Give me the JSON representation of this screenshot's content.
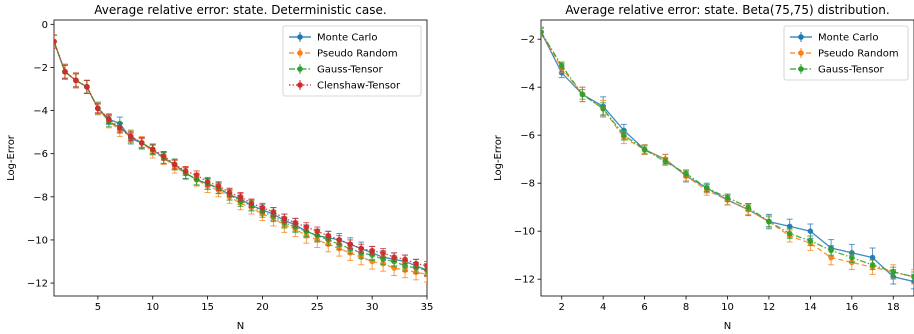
{
  "chart_data": [
    {
      "type": "line",
      "title": "Average relative error: state. Deterministic case.",
      "xlabel": "N",
      "ylabel": "Log-Error",
      "xlim": [
        1,
        35
      ],
      "ylim": [
        -12.6,
        0.2
      ],
      "xticks": [
        5,
        10,
        15,
        20,
        25,
        30,
        35
      ],
      "yticks": [
        0,
        -2,
        -4,
        -6,
        -8,
        -10,
        -12
      ],
      "legend": "top-right",
      "x": [
        1,
        2,
        3,
        4,
        5,
        6,
        7,
        8,
        9,
        10,
        11,
        12,
        13,
        14,
        15,
        16,
        17,
        18,
        19,
        20,
        21,
        22,
        23,
        24,
        25,
        26,
        27,
        28,
        29,
        30,
        31,
        32,
        33,
        34,
        35
      ],
      "series": [
        {
          "name": "Monte Carlo",
          "color": "#1f77b4",
          "dash": "solid",
          "values": [
            -0.8,
            -2.2,
            -2.6,
            -2.9,
            -3.9,
            -4.4,
            -4.6,
            -5.3,
            -5.5,
            -5.8,
            -6.2,
            -6.5,
            -6.9,
            -7.2,
            -7.4,
            -7.6,
            -7.9,
            -8.1,
            -8.4,
            -8.6,
            -8.8,
            -9.1,
            -9.3,
            -9.6,
            -9.8,
            -9.9,
            -10.0,
            -10.2,
            -10.4,
            -10.6,
            -10.8,
            -10.9,
            -11.0,
            -11.2,
            -11.4
          ],
          "errors": [
            0.3,
            0.35,
            0.35,
            0.3,
            0.25,
            0.25,
            0.3,
            0.25,
            0.25,
            0.25,
            0.25,
            0.25,
            0.25,
            0.25,
            0.25,
            0.25,
            0.25,
            0.25,
            0.25,
            0.25,
            0.3,
            0.3,
            0.3,
            0.3,
            0.3,
            0.3,
            0.3,
            0.3,
            0.3,
            0.3,
            0.3,
            0.3,
            0.3,
            0.3,
            0.3
          ]
        },
        {
          "name": "Pseudo Random",
          "color": "#ff7f0e",
          "dash": "dashed",
          "values": [
            -0.8,
            -2.2,
            -2.6,
            -2.9,
            -3.9,
            -4.5,
            -4.9,
            -5.2,
            -5.5,
            -5.9,
            -6.2,
            -6.6,
            -6.9,
            -7.2,
            -7.5,
            -7.7,
            -8.0,
            -8.3,
            -8.5,
            -8.8,
            -9.0,
            -9.3,
            -9.5,
            -9.8,
            -10.0,
            -10.2,
            -10.4,
            -10.6,
            -10.8,
            -11.0,
            -11.1,
            -11.3,
            -11.4,
            -11.5,
            -11.6
          ],
          "errors": [
            0.3,
            0.35,
            0.35,
            0.3,
            0.3,
            0.3,
            0.3,
            0.3,
            0.3,
            0.3,
            0.3,
            0.3,
            0.3,
            0.3,
            0.3,
            0.3,
            0.3,
            0.3,
            0.3,
            0.3,
            0.35,
            0.35,
            0.35,
            0.35,
            0.35,
            0.35,
            0.35,
            0.35,
            0.35,
            0.35,
            0.35,
            0.35,
            0.35,
            0.35,
            0.35
          ]
        },
        {
          "name": "Gauss-Tensor",
          "color": "#2ca02c",
          "dash": "dashdot",
          "values": [
            -0.8,
            -2.2,
            -2.6,
            -2.9,
            -3.9,
            -4.5,
            -4.8,
            -5.2,
            -5.5,
            -5.8,
            -6.2,
            -6.5,
            -6.9,
            -7.2,
            -7.4,
            -7.6,
            -7.9,
            -8.2,
            -8.4,
            -8.7,
            -8.9,
            -9.2,
            -9.4,
            -9.6,
            -9.8,
            -10.0,
            -10.2,
            -10.4,
            -10.6,
            -10.7,
            -10.9,
            -11.0,
            -11.2,
            -11.3,
            -11.4
          ],
          "errors": [
            0.3,
            0.3,
            0.3,
            0.3,
            0.25,
            0.25,
            0.25,
            0.25,
            0.25,
            0.25,
            0.25,
            0.25,
            0.25,
            0.25,
            0.25,
            0.25,
            0.25,
            0.25,
            0.25,
            0.25,
            0.25,
            0.25,
            0.25,
            0.25,
            0.25,
            0.25,
            0.25,
            0.25,
            0.25,
            0.25,
            0.25,
            0.25,
            0.25,
            0.25,
            0.25
          ]
        },
        {
          "name": "Clenshaw-Tensor",
          "color": "#d62728",
          "dash": "dotted",
          "values": [
            -0.8,
            -2.2,
            -2.6,
            -2.9,
            -3.9,
            -4.4,
            -4.8,
            -5.2,
            -5.5,
            -5.8,
            -6.1,
            -6.5,
            -6.8,
            -7.0,
            -7.3,
            -7.5,
            -7.8,
            -8.0,
            -8.3,
            -8.5,
            -8.7,
            -9.0,
            -9.2,
            -9.4,
            -9.6,
            -9.8,
            -10.0,
            -10.2,
            -10.4,
            -10.5,
            -10.6,
            -10.8,
            -10.9,
            -11.1,
            -11.2
          ],
          "errors": [
            0.3,
            0.3,
            0.3,
            0.3,
            0.2,
            0.2,
            0.2,
            0.2,
            0.2,
            0.2,
            0.2,
            0.2,
            0.2,
            0.2,
            0.2,
            0.2,
            0.2,
            0.2,
            0.2,
            0.2,
            0.2,
            0.2,
            0.2,
            0.2,
            0.2,
            0.2,
            0.2,
            0.2,
            0.2,
            0.2,
            0.2,
            0.2,
            0.2,
            0.2,
            0.2
          ]
        }
      ]
    },
    {
      "type": "line",
      "title": "Average relative error: state. Beta(75,75) distribution.",
      "xlabel": "N",
      "ylabel": "Log-Error",
      "xlim": [
        1,
        19
      ],
      "ylim": [
        -12.7,
        -1.2
      ],
      "xticks": [
        2,
        4,
        6,
        8,
        10,
        12,
        14,
        16,
        18
      ],
      "yticks": [
        -2,
        -4,
        -6,
        -8,
        -10,
        -12
      ],
      "legend": "top-right",
      "x": [
        1,
        2,
        3,
        4,
        5,
        6,
        7,
        8,
        9,
        10,
        11,
        12,
        13,
        14,
        15,
        16,
        17,
        18,
        19
      ],
      "series": [
        {
          "name": "Monte Carlo",
          "color": "#1f77b4",
          "dash": "solid",
          "values": [
            -1.7,
            -3.4,
            -4.3,
            -4.8,
            -5.8,
            -6.6,
            -7.0,
            -7.7,
            -8.2,
            -8.7,
            -9.1,
            -9.6,
            -9.8,
            -10.0,
            -10.7,
            -10.9,
            -11.1,
            -11.9,
            -12.1
          ],
          "errors": [
            0.2,
            0.2,
            0.3,
            0.4,
            0.25,
            0.2,
            0.2,
            0.25,
            0.2,
            0.2,
            0.25,
            0.3,
            0.3,
            0.3,
            0.35,
            0.35,
            0.4,
            0.3,
            0.3
          ]
        },
        {
          "name": "Pseudo Random",
          "color": "#ff7f0e",
          "dash": "dashed",
          "values": [
            -1.7,
            -3.2,
            -4.3,
            -4.9,
            -6.1,
            -6.6,
            -7.0,
            -7.7,
            -8.3,
            -8.7,
            -9.1,
            -9.6,
            -10.2,
            -10.5,
            -11.1,
            -11.3,
            -11.5,
            -11.7,
            -11.9
          ],
          "errors": [
            0.2,
            0.2,
            0.3,
            0.35,
            0.25,
            0.2,
            0.2,
            0.2,
            0.2,
            0.2,
            0.2,
            0.25,
            0.25,
            0.3,
            0.3,
            0.3,
            0.3,
            0.3,
            0.3
          ]
        },
        {
          "name": "Gauss-Tensor",
          "color": "#2ca02c",
          "dash": "dashdot",
          "values": [
            -1.7,
            -3.1,
            -4.3,
            -4.9,
            -6.0,
            -6.6,
            -7.1,
            -7.6,
            -8.2,
            -8.6,
            -9.0,
            -9.6,
            -10.1,
            -10.4,
            -10.8,
            -11.1,
            -11.4,
            -11.7,
            -11.9
          ],
          "errors": [
            0.15,
            0.15,
            0.2,
            0.25,
            0.2,
            0.15,
            0.15,
            0.15,
            0.15,
            0.15,
            0.15,
            0.2,
            0.2,
            0.2,
            0.2,
            0.2,
            0.2,
            0.2,
            0.2
          ]
        }
      ]
    }
  ]
}
